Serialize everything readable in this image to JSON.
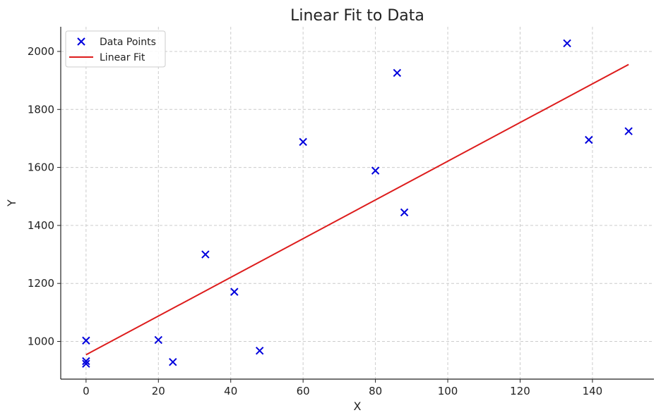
{
  "chart_data": {
    "type": "scatter",
    "title": "Linear Fit to Data",
    "xlabel": "X",
    "ylabel": "Y",
    "xlim": [
      -7,
      157
    ],
    "ylim": [
      870,
      2085
    ],
    "xticks": [
      0,
      20,
      40,
      60,
      80,
      100,
      120,
      140
    ],
    "yticks": [
      1000,
      1200,
      1400,
      1600,
      1800,
      2000
    ],
    "grid": true,
    "legend_position": "top-left",
    "series": [
      {
        "name": "Data Points",
        "kind": "scatter",
        "marker": "x",
        "color": "#0000dd",
        "points": [
          {
            "x": 0,
            "y": 1003
          },
          {
            "x": 0,
            "y": 932
          },
          {
            "x": 0,
            "y": 923
          },
          {
            "x": 20,
            "y": 1005
          },
          {
            "x": 24,
            "y": 929
          },
          {
            "x": 33,
            "y": 1300
          },
          {
            "x": 41,
            "y": 1171
          },
          {
            "x": 48,
            "y": 968
          },
          {
            "x": 60,
            "y": 1688
          },
          {
            "x": 80,
            "y": 1589
          },
          {
            "x": 86,
            "y": 1926
          },
          {
            "x": 88,
            "y": 1445
          },
          {
            "x": 133,
            "y": 2028
          },
          {
            "x": 139,
            "y": 1695
          },
          {
            "x": 150,
            "y": 1725
          }
        ]
      },
      {
        "name": "Linear Fit",
        "kind": "line",
        "color": "#dd1c1c",
        "points": [
          {
            "x": 0,
            "y": 954
          },
          {
            "x": 150,
            "y": 1955
          }
        ]
      }
    ]
  }
}
